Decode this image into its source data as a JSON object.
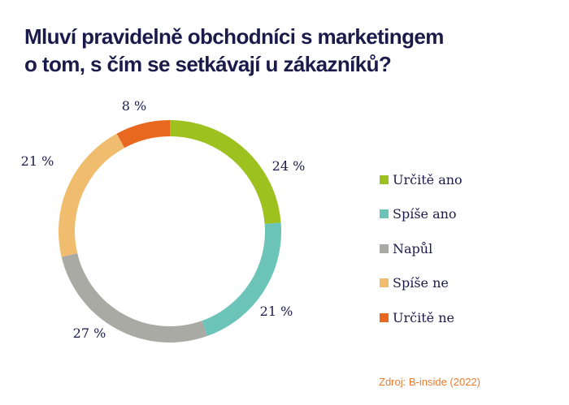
{
  "title_line1": "Mluví pravidelně obchodníci s marketingem",
  "title_line2": "o tom, s čím se setkávají u zákazníků?",
  "source": "Zdroj: B-inside (2022)",
  "chart_data": {
    "type": "pie",
    "variant": "donut",
    "start": "top, clockwise",
    "categories": [
      "Určitě ano",
      "Spíše ano",
      "Napůl",
      "Spíše ne",
      "Určitě ne"
    ],
    "values": [
      24,
      21,
      27,
      21,
      8
    ],
    "labels": [
      "24 %",
      "21 %",
      "27 %",
      "21 %",
      "8 %"
    ],
    "colors": [
      "#9dc11f",
      "#6cc4b8",
      "#aaaaa4",
      "#f0bd6f",
      "#e8681f"
    ],
    "legend": "right"
  }
}
